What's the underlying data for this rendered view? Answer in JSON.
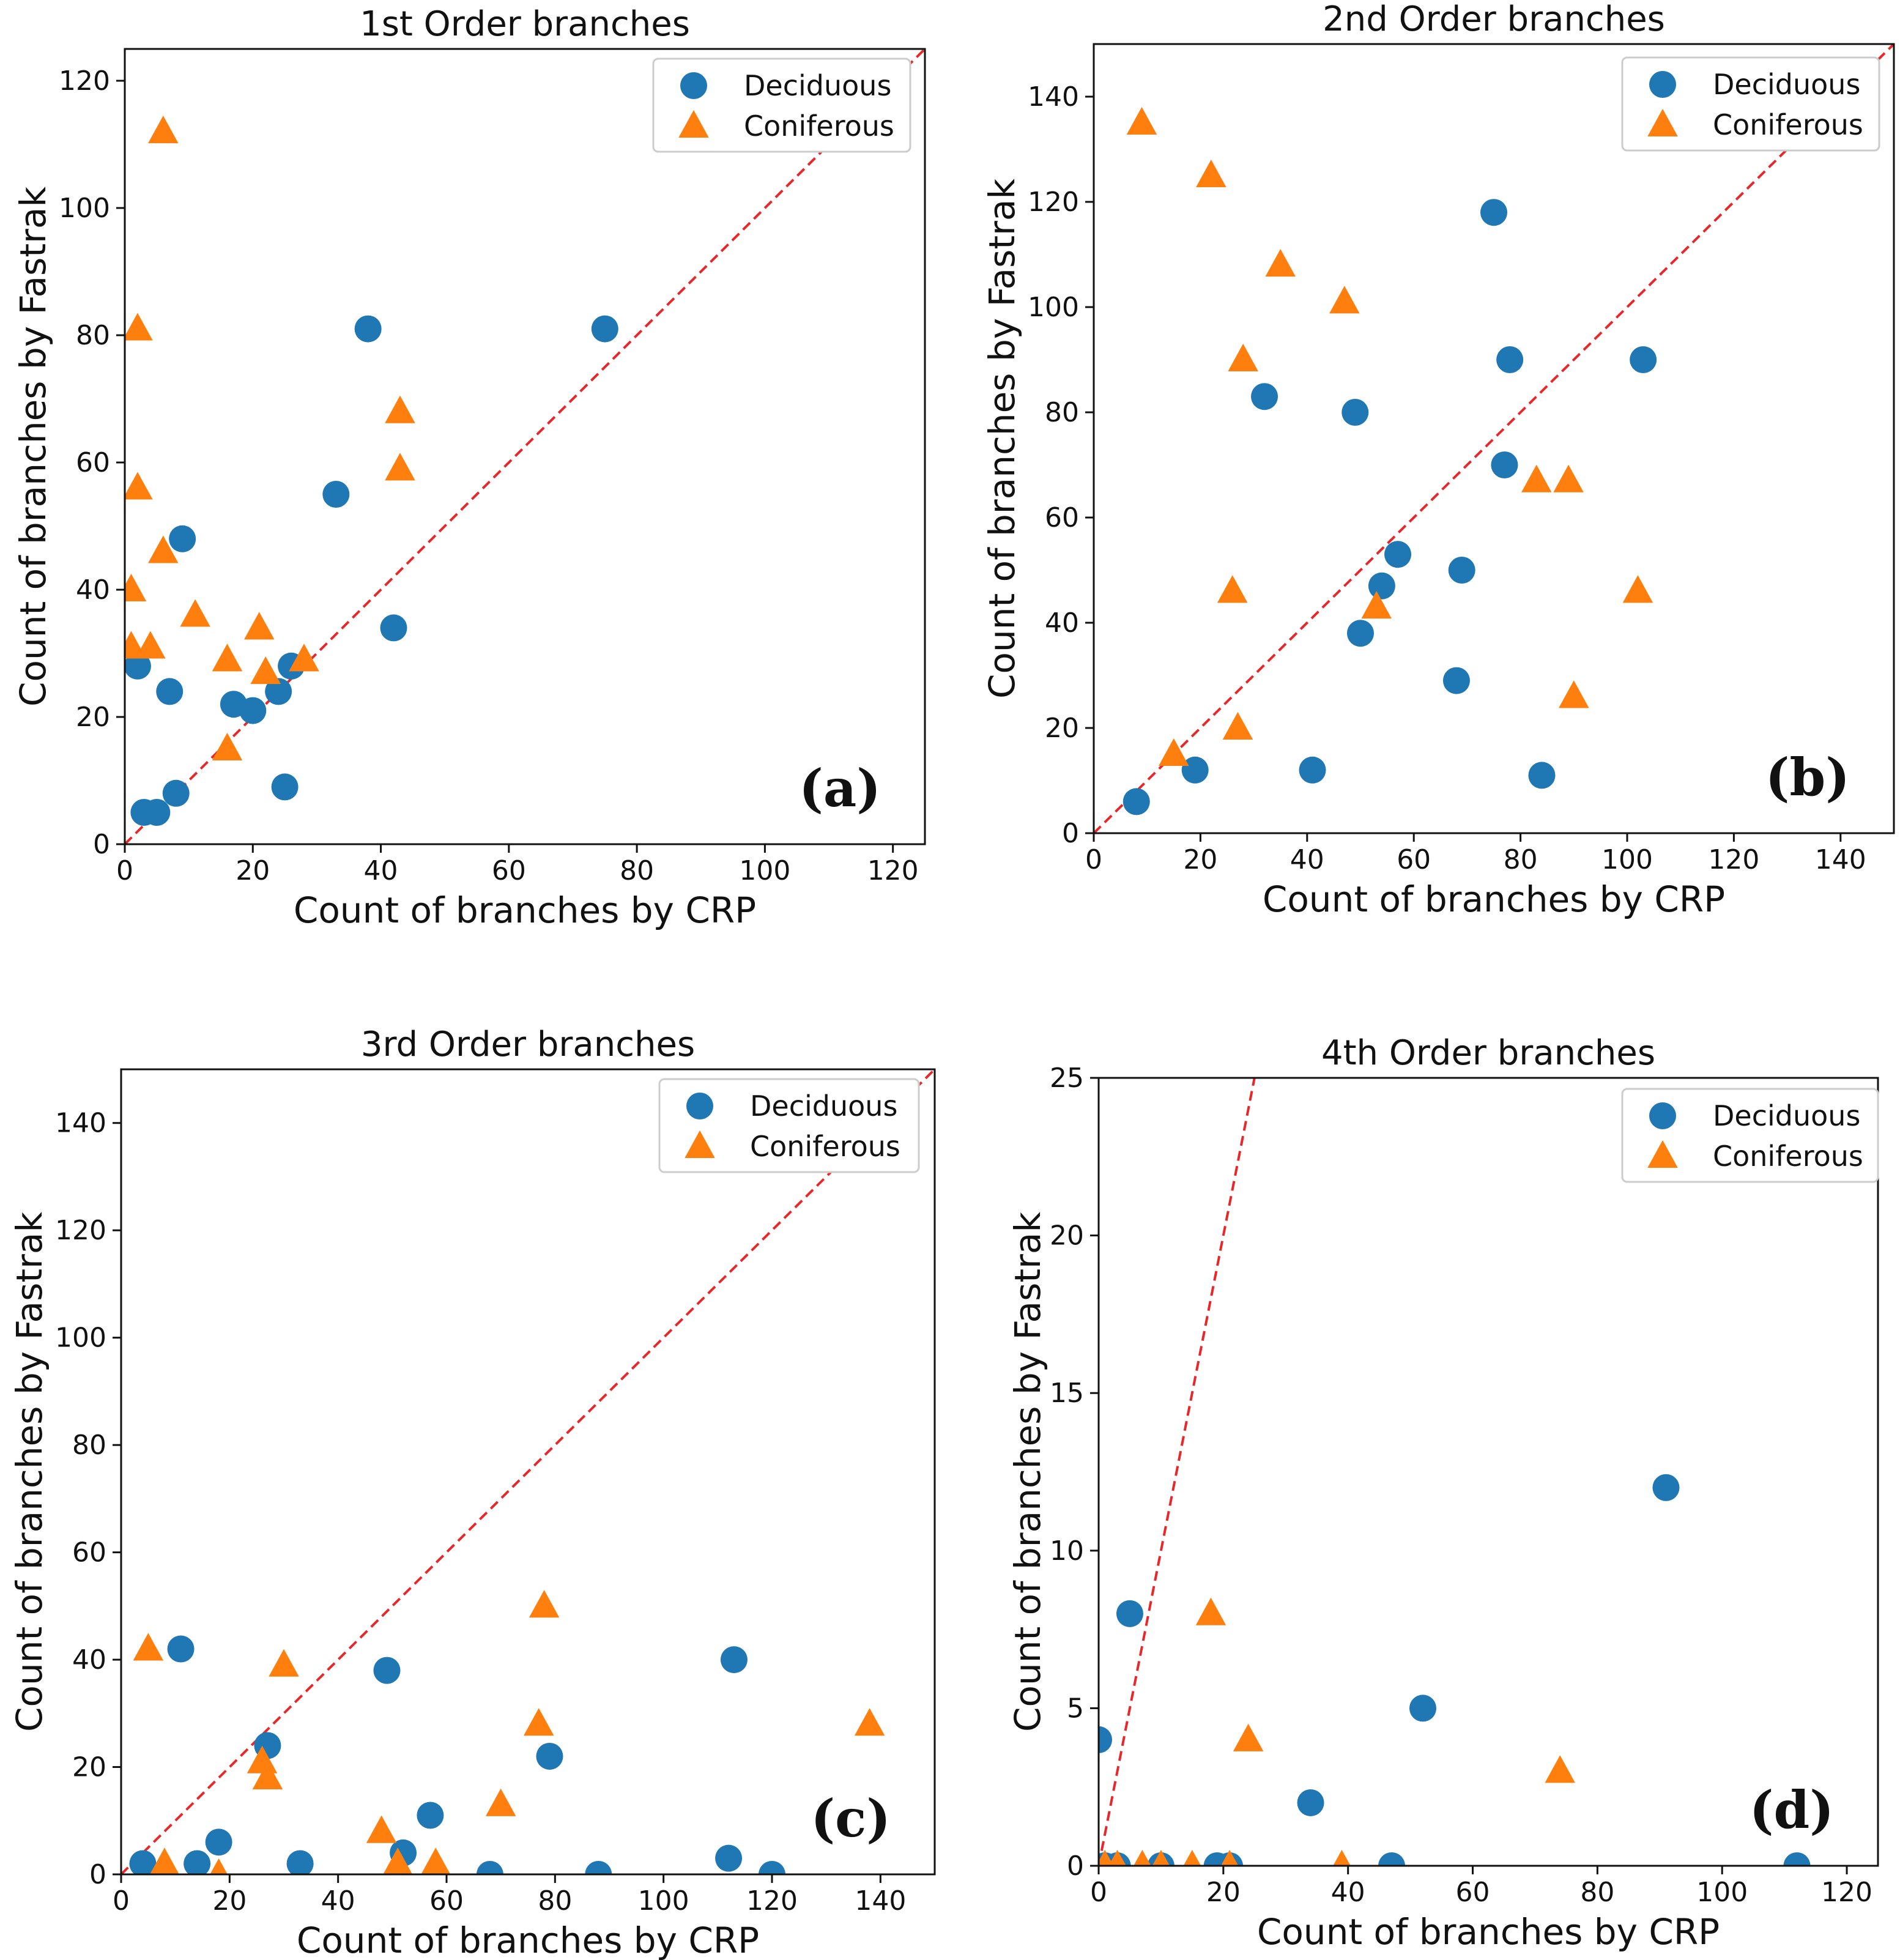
{
  "colors": {
    "deciduous": "#1f77b4",
    "coniferous": "#ff7f0e",
    "identity": "#e8272a"
  },
  "chart_data": [
    {
      "type": "scatter",
      "title": "1st Order branches",
      "panel_label": "(a)",
      "xlabel": "Count of branches by CRP",
      "ylabel": "Count of branches by Fastrak",
      "xlim": [
        0,
        125
      ],
      "ylim": [
        0,
        125
      ],
      "xticks": [
        "0",
        "20",
        "40",
        "60",
        "80",
        "100",
        "120"
      ],
      "yticks": [
        "0",
        "20",
        "40",
        "60",
        "80",
        "100",
        "120"
      ],
      "legend_position": "top-right",
      "series": [
        {
          "name": "Deciduous",
          "marker": "circle",
          "x": [
            2,
            3,
            5,
            7,
            8,
            9,
            17,
            20,
            24,
            25,
            26,
            33,
            38,
            42,
            75
          ],
          "y": [
            28,
            5,
            5,
            24,
            8,
            48,
            22,
            21,
            24,
            9,
            28,
            55,
            81,
            34,
            81
          ]
        },
        {
          "name": "Coniferous",
          "marker": "triangle",
          "x": [
            1,
            1,
            2,
            2,
            4,
            6,
            6,
            11,
            16,
            16,
            21,
            22,
            28,
            43,
            43
          ],
          "y": [
            40,
            31,
            81,
            56,
            31,
            46,
            112,
            36,
            29,
            15,
            34,
            27,
            29,
            68,
            59
          ]
        }
      ]
    },
    {
      "type": "scatter",
      "title": "2nd Order branches",
      "panel_label": "(b)",
      "xlabel": "Count of branches by CRP",
      "ylabel": "Count of branches by Fastrak",
      "xlim": [
        0,
        150
      ],
      "ylim": [
        0,
        150
      ],
      "xticks": [
        "0",
        "20",
        "40",
        "60",
        "80",
        "100",
        "120",
        "140"
      ],
      "yticks": [
        "0",
        "20",
        "40",
        "60",
        "80",
        "100",
        "120",
        "140"
      ],
      "legend_position": "top-right",
      "series": [
        {
          "name": "Deciduous",
          "marker": "circle",
          "x": [
            8,
            19,
            32,
            41,
            49,
            50,
            54,
            57,
            68,
            69,
            75,
            77,
            78,
            84,
            103
          ],
          "y": [
            6,
            12,
            83,
            12,
            80,
            38,
            47,
            53,
            29,
            50,
            118,
            70,
            90,
            11,
            90
          ]
        },
        {
          "name": "Coniferous",
          "marker": "triangle",
          "x": [
            9,
            15,
            22,
            26,
            27,
            28,
            35,
            47,
            53,
            83,
            89,
            90,
            102
          ],
          "y": [
            135,
            15,
            125,
            46,
            20,
            90,
            108,
            101,
            43,
            67,
            67,
            26,
            46
          ]
        }
      ]
    },
    {
      "type": "scatter",
      "title": "3rd Order branches",
      "panel_label": "(c)",
      "xlabel": "Count of branches by CRP",
      "ylabel": "Count of branches by Fastrak",
      "xlim": [
        0,
        150
      ],
      "ylim": [
        0,
        150
      ],
      "xticks": [
        "0",
        "20",
        "40",
        "60",
        "80",
        "100",
        "120",
        "140"
      ],
      "yticks": [
        "0",
        "20",
        "40",
        "60",
        "80",
        "100",
        "120",
        "140"
      ],
      "legend_position": "top-right",
      "series": [
        {
          "name": "Deciduous",
          "marker": "circle",
          "x": [
            4,
            11,
            14,
            18,
            27,
            33,
            49,
            52,
            57,
            68,
            79,
            88,
            112,
            113,
            120
          ],
          "y": [
            2,
            42,
            2,
            6,
            24,
            2,
            38,
            4,
            11,
            0,
            22,
            0,
            3,
            40,
            0
          ]
        },
        {
          "name": "Coniferous",
          "marker": "triangle",
          "x": [
            5,
            8,
            18,
            26,
            27,
            30,
            48,
            51,
            58,
            70,
            77,
            78,
            138
          ],
          "y": [
            42,
            2,
            0,
            21,
            18,
            39,
            8,
            2,
            2,
            13,
            28,
            50,
            28
          ]
        }
      ]
    },
    {
      "type": "scatter",
      "title": "4th Order branches",
      "panel_label": "(d)",
      "xlabel": "Count of branches by CRP",
      "ylabel": "Count of branches by Fastrak",
      "xlim": [
        0,
        125
      ],
      "ylim": [
        0,
        25
      ],
      "xticks": [
        "0",
        "20",
        "40",
        "60",
        "80",
        "100",
        "120"
      ],
      "yticks": [
        "0",
        "5",
        "10",
        "15",
        "20",
        "25"
      ],
      "legend_position": "top-right",
      "series": [
        {
          "name": "Deciduous",
          "marker": "circle",
          "x": [
            0,
            1,
            3,
            5,
            10,
            19,
            21,
            34,
            47,
            52,
            91,
            112
          ],
          "y": [
            4,
            0,
            0,
            8,
            0,
            0,
            0,
            2,
            0,
            5,
            12,
            0
          ]
        },
        {
          "name": "Coniferous",
          "marker": "triangle",
          "x": [
            1,
            3,
            7,
            10,
            15,
            18,
            21,
            24,
            39,
            74
          ],
          "y": [
            0,
            0,
            0,
            0,
            0,
            8,
            0,
            4,
            0,
            3
          ]
        }
      ]
    }
  ]
}
